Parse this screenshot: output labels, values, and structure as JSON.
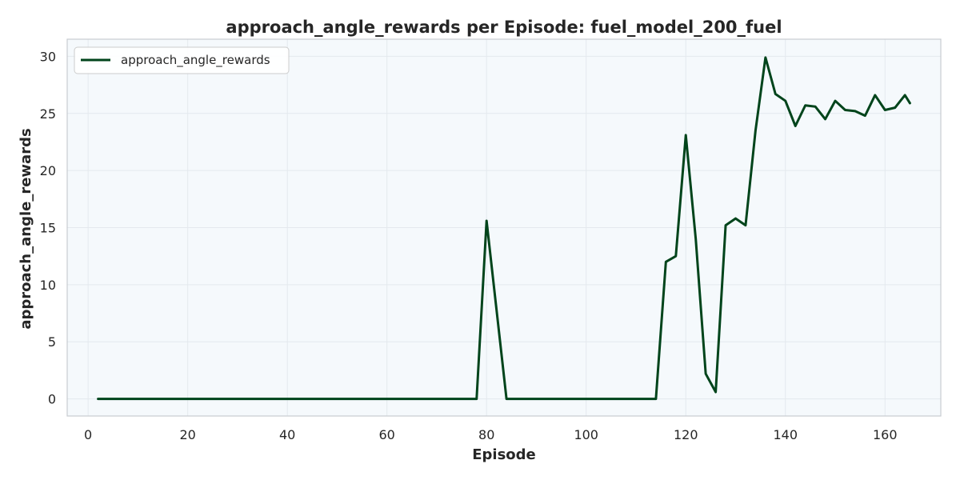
{
  "colors": {
    "line": "#00441b",
    "plot_background": "#f5f9fc",
    "grid": "#e4e9ee",
    "frame": "#c8ccd0"
  },
  "chart_data": {
    "type": "line",
    "title": "approach_angle_rewards per Episode: fuel_model_200_fuel",
    "xlabel": "Episode",
    "ylabel": "approach_angle_rewards",
    "xlim": [
      -4.2,
      171.2
    ],
    "ylim": [
      -1.5,
      31.5
    ],
    "xticks": [
      0,
      20,
      40,
      60,
      80,
      100,
      120,
      140,
      160
    ],
    "yticks": [
      0,
      5,
      10,
      15,
      20,
      25,
      30
    ],
    "grid": true,
    "legend_position": "top-left",
    "series": [
      {
        "name": "approach_angle_rewards",
        "x": [
          2,
          4,
          6,
          8,
          10,
          12,
          14,
          16,
          18,
          20,
          22,
          24,
          26,
          28,
          30,
          32,
          34,
          36,
          38,
          40,
          42,
          44,
          46,
          48,
          50,
          52,
          54,
          56,
          58,
          60,
          62,
          64,
          66,
          68,
          70,
          72,
          74,
          76,
          78,
          80,
          82,
          84,
          86,
          88,
          90,
          92,
          94,
          96,
          98,
          100,
          102,
          104,
          106,
          108,
          110,
          112,
          114,
          116,
          118,
          120,
          122,
          124,
          126,
          128,
          130,
          132,
          134,
          136,
          138,
          140,
          142,
          144,
          146,
          148,
          150,
          152,
          154,
          156,
          158,
          160,
          162,
          164,
          165
        ],
        "y": [
          0,
          0,
          0,
          0,
          0,
          0,
          0,
          0,
          0,
          0,
          0,
          0,
          0,
          0,
          0,
          0,
          0,
          0,
          0,
          0,
          0,
          0,
          0,
          0,
          0,
          0,
          0,
          0,
          0,
          0,
          0,
          0,
          0,
          0,
          0,
          0,
          0,
          0,
          0,
          15.6,
          7.8,
          0,
          0,
          0,
          0,
          0,
          0,
          0,
          0,
          0,
          0,
          0,
          0,
          0,
          0,
          0,
          0,
          12.0,
          12.5,
          23.1,
          14.0,
          2.2,
          0.6,
          15.2,
          15.8,
          15.2,
          23.5,
          29.9,
          26.7,
          26.1,
          23.9,
          25.7,
          25.6,
          24.5,
          26.1,
          25.3,
          25.2,
          24.8,
          26.6,
          25.3,
          25.5,
          26.6,
          25.9
        ]
      }
    ]
  }
}
